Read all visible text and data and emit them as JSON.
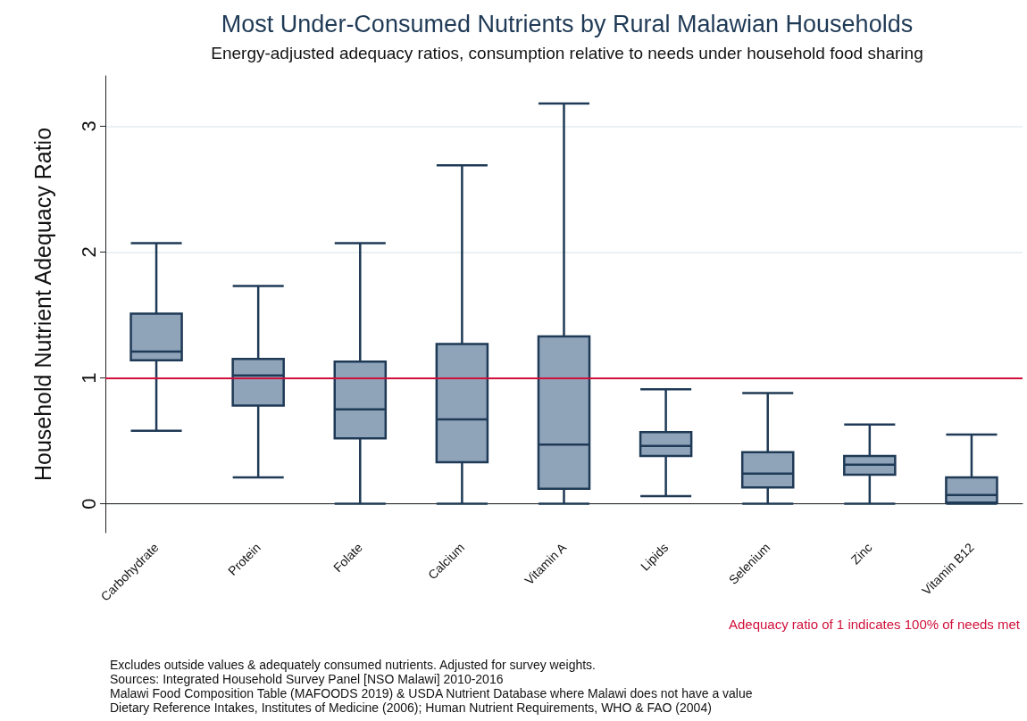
{
  "chart_data": {
    "type": "box",
    "title": "Most Under-Consumed Nutrients by Rural Malawian Households",
    "subtitle": "Energy-adjusted adequacy ratios, consumption relative to needs under household food sharing",
    "ylabel": "Household Nutrient Adequacy Ratio",
    "categories": [
      "Carbohydrate",
      "Protein",
      "Folate",
      "Calcium",
      "Vitamin A",
      "Lipids",
      "Selenium",
      "Zinc",
      "Vitamin B12"
    ],
    "boxes": [
      {
        "low": 0.58,
        "q1": 1.14,
        "median": 1.21,
        "q3": 1.51,
        "high": 2.07
      },
      {
        "low": 0.21,
        "q1": 0.78,
        "median": 1.02,
        "q3": 1.15,
        "high": 1.73
      },
      {
        "low": 0,
        "q1": 0.52,
        "median": 0.75,
        "q3": 1.13,
        "high": 2.07
      },
      {
        "low": 0,
        "q1": 0.33,
        "median": 0.67,
        "q3": 1.27,
        "high": 2.69
      },
      {
        "low": 0,
        "q1": 0.12,
        "median": 0.47,
        "q3": 1.33,
        "high": 3.18
      },
      {
        "low": 0.06,
        "q1": 0.38,
        "median": 0.46,
        "q3": 0.57,
        "high": 0.91
      },
      {
        "low": 0,
        "q1": 0.13,
        "median": 0.24,
        "q3": 0.41,
        "high": 0.88
      },
      {
        "low": 0,
        "q1": 0.23,
        "median": 0.31,
        "q3": 0.38,
        "high": 0.63
      },
      {
        "low": 0,
        "q1": 0.01,
        "median": 0.07,
        "q3": 0.21,
        "high": 0.55
      }
    ],
    "color": "#8fa3b9",
    "ylim": [
      -0.23,
      3.4
    ],
    "yticks": [
      0,
      1,
      2,
      3
    ],
    "grid": "y",
    "ref_lines": [
      {
        "axis": "y",
        "value": 1,
        "label": "Adequacy ratio of 1 indicates 100% of needs met",
        "color": "#d0103a"
      }
    ],
    "annotations": [
      "Excludes outside values & adequately consumed nutrients. Adjusted for survey weights.",
      "Sources: Integrated Household Survey Panel [NSO Malawi] 2010-2016",
      "Malawi Food Composition Table (MAFOODS 2019) & USDA Nutrient Database where Malawi does not have a value",
      "Dietary Reference Intakes, Institutes of Medicine (2006); Human Nutrient Requirements, WHO & FAO (2004)"
    ]
  }
}
